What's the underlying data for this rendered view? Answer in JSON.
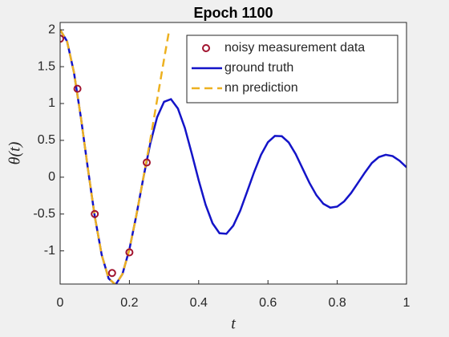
{
  "chart_data": {
    "type": "line",
    "title": "Epoch 1100",
    "xlabel": "t",
    "ylabel": "θ(t)",
    "xlim": [
      0,
      1
    ],
    "ylim": [
      -1.45,
      2.1
    ],
    "xticks": [
      0,
      0.2,
      0.4,
      0.6,
      0.8,
      1
    ],
    "yticks": [
      -1,
      -0.5,
      0,
      0.5,
      1,
      1.5,
      2
    ],
    "legend": "northeast",
    "series": [
      {
        "name": "noisy measurement data",
        "kind": "scatter",
        "color": "#a2142f",
        "x": [
          0,
          0.05,
          0.1,
          0.15,
          0.2,
          0.25
        ],
        "values": [
          1.88,
          1.2,
          -0.5,
          -1.3,
          -1.02,
          0.2
        ]
      },
      {
        "name": "ground truth",
        "kind": "line",
        "color": "#1414c8",
        "x": [
          0,
          0.02,
          0.04,
          0.06,
          0.08,
          0.1,
          0.12,
          0.14,
          0.16,
          0.18,
          0.2,
          0.22,
          0.24,
          0.26,
          0.28,
          0.3,
          0.32,
          0.34,
          0.36,
          0.38,
          0.4,
          0.42,
          0.44,
          0.46,
          0.48,
          0.5,
          0.52,
          0.54,
          0.56,
          0.58,
          0.6,
          0.62,
          0.64,
          0.66,
          0.68,
          0.7,
          0.72,
          0.74,
          0.76,
          0.78,
          0.8,
          0.82,
          0.84,
          0.86,
          0.88,
          0.9,
          0.92,
          0.94,
          0.96,
          0.98,
          1
        ],
        "values": [
          2,
          1.845,
          1.419,
          0.808,
          0.121,
          -0.532,
          -1.054,
          -1.374,
          -1.459,
          -1.314,
          -0.978,
          -0.519,
          -0.015,
          0.452,
          0.814,
          1.023,
          1.059,
          0.932,
          0.67,
          0.322,
          -0.042,
          -0.374,
          -0.625,
          -0.76,
          -0.768,
          -0.657,
          -0.454,
          -0.194,
          0.069,
          0.304,
          0.476,
          0.56,
          0.556,
          0.471,
          0.314,
          0.117,
          -0.079,
          -0.245,
          -0.361,
          -0.413,
          -0.399,
          -0.328,
          -0.215,
          -0.076,
          0.064,
          0.193,
          0.273,
          0.304,
          0.286,
          0.223,
          0.135
        ]
      },
      {
        "name": "nn prediction",
        "kind": "dashed",
        "color": "#edb120",
        "x": [
          0,
          0.02,
          0.04,
          0.06,
          0.08,
          0.1,
          0.12,
          0.14,
          0.16,
          0.18,
          0.2,
          0.22,
          0.24,
          0.26,
          0.28,
          0.3,
          0.315
        ],
        "values": [
          2,
          1.845,
          1.419,
          0.808,
          0.121,
          -0.532,
          -1.054,
          -1.374,
          -1.459,
          -1.314,
          -0.978,
          -0.519,
          -0.015,
          0.5,
          1.05,
          1.6,
          2.0
        ]
      }
    ]
  }
}
